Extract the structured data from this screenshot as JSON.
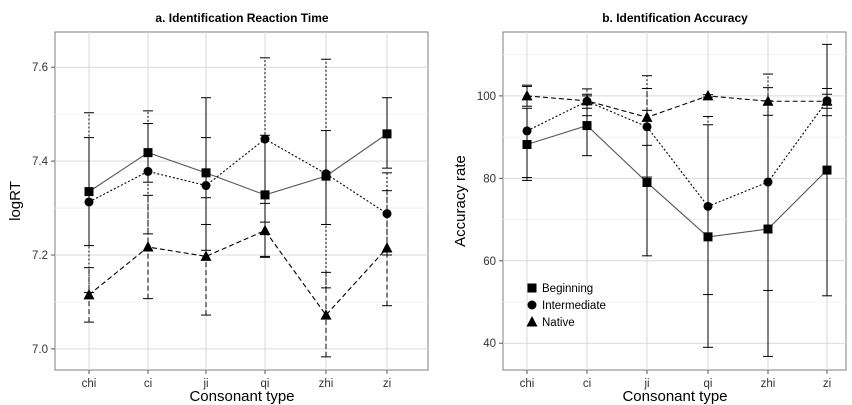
{
  "chart_data": [
    {
      "type": "line",
      "title": "a. Identification Reaction Time",
      "xlabel": "Consonant type",
      "ylabel": "logRT",
      "categories": [
        "chi",
        "ci",
        "ji",
        "qi",
        "zhi",
        "zi"
      ],
      "ylim": [
        6.955,
        7.675
      ],
      "yticks": [
        "7.0",
        "7.2",
        "7.4",
        "7.6"
      ],
      "grid": true,
      "series": [
        {
          "name": "Beginning",
          "marker": "square",
          "line": "solid",
          "values": [
            7.335,
            7.418,
            7.375,
            7.328,
            7.368,
            7.458
          ],
          "err_low": [
            7.22,
            7.355,
            7.21,
            7.195,
            7.265,
            7.385
          ],
          "err_high": [
            7.45,
            7.48,
            7.535,
            7.455,
            7.465,
            7.535
          ]
        },
        {
          "name": "Intermediate",
          "marker": "circle",
          "line": "dotted",
          "values": [
            7.313,
            7.378,
            7.348,
            7.447,
            7.373,
            7.288
          ],
          "err_low": [
            7.12,
            7.245,
            7.265,
            7.27,
            7.13,
            7.2
          ],
          "err_high": [
            7.503,
            7.507,
            7.45,
            7.62,
            7.617,
            7.375
          ]
        },
        {
          "name": "Native",
          "marker": "triangle",
          "line": "dashed",
          "values": [
            7.115,
            7.217,
            7.197,
            7.252,
            7.072,
            7.215
          ],
          "err_low": [
            7.057,
            7.107,
            7.072,
            7.197,
            6.983,
            7.092
          ],
          "err_high": [
            7.173,
            7.327,
            7.322,
            7.31,
            7.163,
            7.337
          ]
        }
      ]
    },
    {
      "type": "line",
      "title": "b. Identification Accuracy",
      "xlabel": "Consonant type",
      "ylabel": "Accuracy rate",
      "categories": [
        "chi",
        "ci",
        "ji",
        "qi",
        "zhi",
        "zi"
      ],
      "ylim": [
        33.5,
        115.5
      ],
      "yticks": [
        "40",
        "60",
        "80",
        "100"
      ],
      "grid": true,
      "legend": {
        "position": "bottom-left",
        "entries": [
          "Beginning",
          "Intermediate",
          "Native"
        ]
      },
      "series": [
        {
          "name": "Beginning",
          "marker": "square",
          "line": "solid",
          "values": [
            88.2,
            92.8,
            79.0,
            65.8,
            67.7,
            82.0
          ],
          "err_low": [
            79.5,
            85.5,
            61.2,
            39.0,
            36.8,
            51.5
          ],
          "err_high": [
            97.0,
            100.0,
            96.5,
            93.0,
            98.8,
            112.5
          ]
        },
        {
          "name": "Intermediate",
          "marker": "circle",
          "line": "dotted",
          "values": [
            91.5,
            98.7,
            92.5,
            73.2,
            79.1,
            98.8
          ],
          "err_low": [
            80.2,
            95.2,
            80.3,
            51.8,
            52.8,
            95.2
          ],
          "err_high": [
            102.6,
            101.7,
            104.9,
            95.0,
            105.3,
            101.8
          ]
        },
        {
          "name": "Native",
          "marker": "triangle",
          "line": "dashed",
          "values": [
            100.0,
            98.8,
            94.8,
            100.0,
            98.7,
            98.7
          ],
          "err_low": [
            97.5,
            97.0,
            88.0,
            99.7,
            95.3,
            97.0
          ],
          "err_high": [
            102.3,
            100.4,
            101.8,
            100.3,
            102.0,
            100.4
          ]
        }
      ]
    }
  ]
}
